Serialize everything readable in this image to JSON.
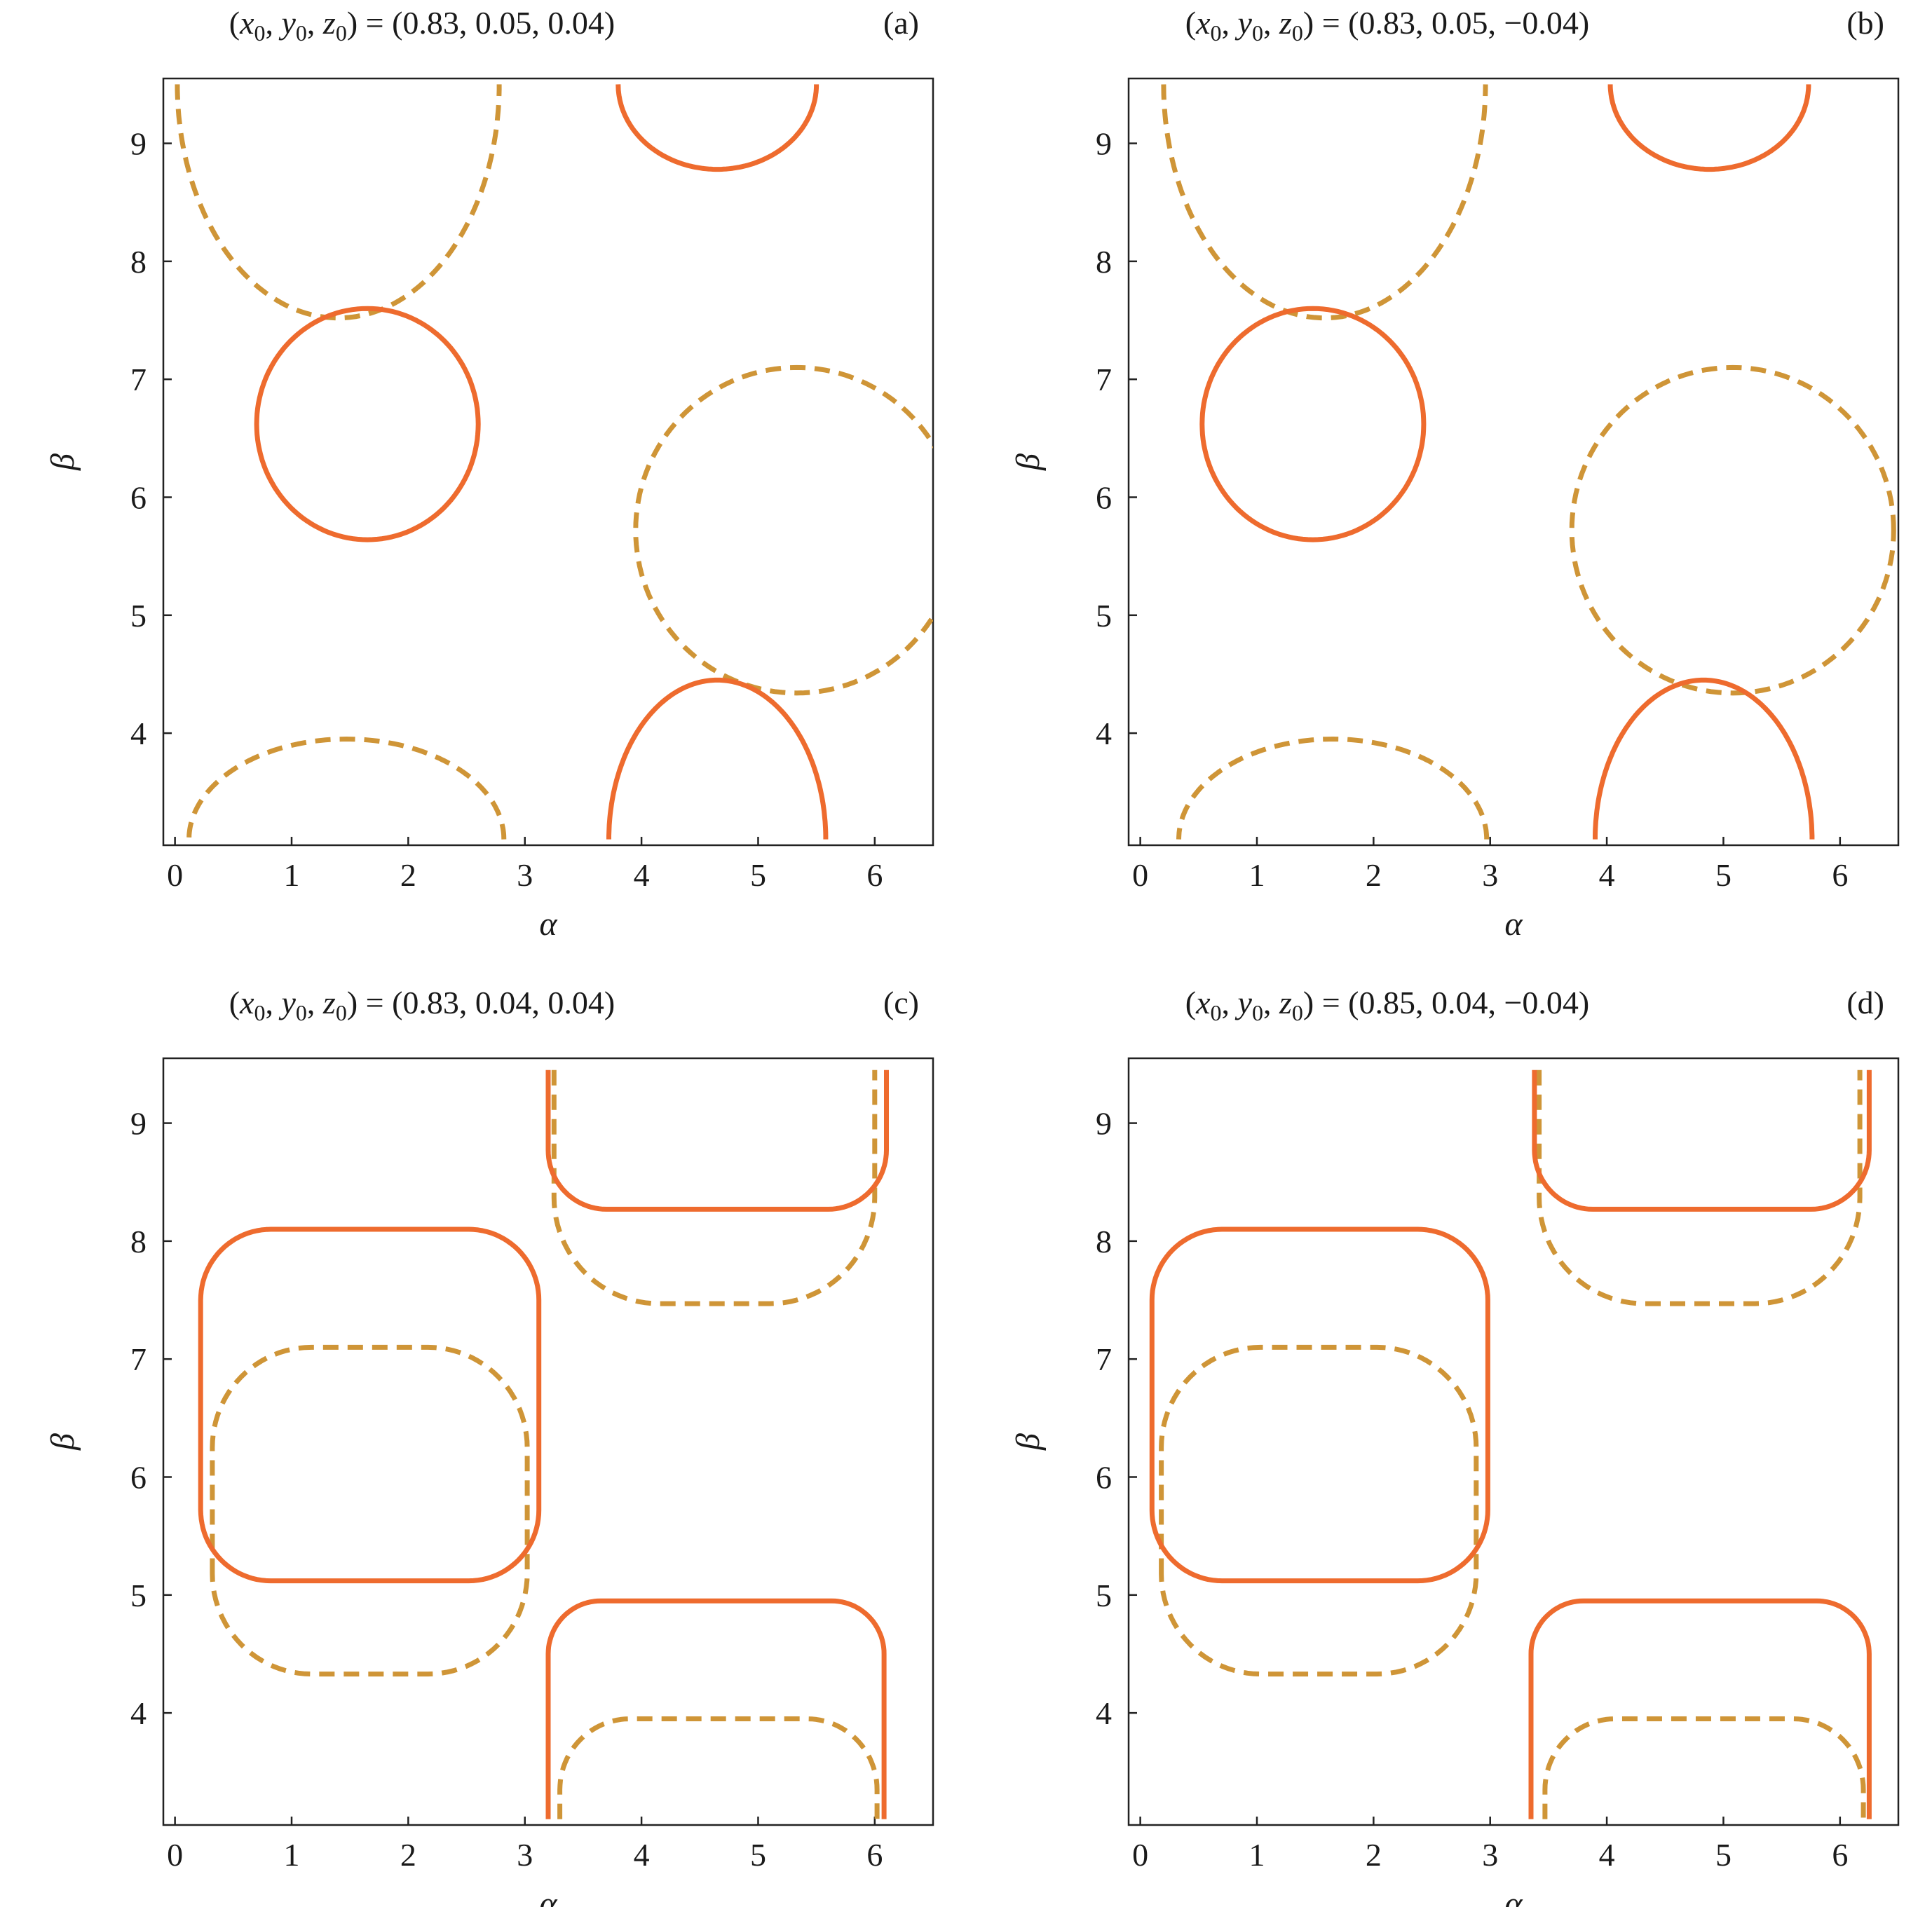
{
  "colors": {
    "solid": "#ee6b2e",
    "dashed": "#cf9537"
  },
  "chart_data": [
    {
      "type": "line",
      "title": "(x0, y0, z0) = (0.83, 0.05, 0.04)",
      "title_parts": {
        "vars": [
          "x",
          "y",
          "z"
        ],
        "sub": "0",
        "values": "(0.83, 0.05, 0.04)"
      },
      "tag": "(a)",
      "xlabel": "α",
      "ylabel": "β",
      "xlim": [
        -0.1,
        6.5
      ],
      "ylim": [
        3.05,
        9.55
      ],
      "xticks": [
        "0",
        "1",
        "2",
        "3",
        "4",
        "5",
        "6"
      ],
      "yticks": [
        "4",
        "5",
        "6",
        "7",
        "8",
        "9"
      ],
      "solid": [
        {
          "type": "ellipse",
          "cx": 1.65,
          "cy": 6.62,
          "rx": 0.95,
          "ry": 0.98
        },
        {
          "type": "ellipse",
          "cx": 4.65,
          "cy": 9.5,
          "rx": 0.85,
          "ry": 0.72,
          "half": "lower"
        },
        {
          "type": "ellipse",
          "cx": 4.65,
          "cy": 3.1,
          "rx": 0.93,
          "ry": 1.35,
          "half": "upper"
        }
      ],
      "dashed": [
        {
          "type": "ellipse",
          "cx": 1.4,
          "cy": 9.5,
          "rx": 1.38,
          "ry": 1.98,
          "half": "lower"
        },
        {
          "type": "ellipse",
          "cx": 5.33,
          "cy": 5.72,
          "rx": 1.38,
          "ry": 1.38
        },
        {
          "type": "ellipse",
          "cx": 1.47,
          "cy": 3.1,
          "rx": 1.35,
          "ry": 0.85,
          "half": "upper"
        }
      ]
    },
    {
      "type": "line",
      "title": "(x0, y0, z0) = (0.83, 0.05, −0.04)",
      "title_parts": {
        "vars": [
          "x",
          "y",
          "z"
        ],
        "sub": "0",
        "values": "(0.83, 0.05, −0.04)"
      },
      "tag": "(b)",
      "xlabel": "α",
      "ylabel": "β",
      "xlim": [
        -0.1,
        6.5
      ],
      "ylim": [
        3.05,
        9.55
      ],
      "xticks": [
        "0",
        "1",
        "2",
        "3",
        "4",
        "5",
        "6"
      ],
      "yticks": [
        "4",
        "5",
        "6",
        "7",
        "8",
        "9"
      ],
      "solid": [
        {
          "type": "ellipse",
          "cx": 1.48,
          "cy": 6.62,
          "rx": 0.95,
          "ry": 0.98
        },
        {
          "type": "ellipse",
          "cx": 4.88,
          "cy": 9.5,
          "rx": 0.85,
          "ry": 0.72,
          "half": "lower"
        },
        {
          "type": "ellipse",
          "cx": 4.83,
          "cy": 3.1,
          "rx": 0.93,
          "ry": 1.35,
          "half": "upper"
        }
      ],
      "dashed": [
        {
          "type": "ellipse",
          "cx": 1.58,
          "cy": 9.5,
          "rx": 1.38,
          "ry": 1.98,
          "half": "lower"
        },
        {
          "type": "ellipse",
          "cx": 5.08,
          "cy": 5.72,
          "rx": 1.38,
          "ry": 1.38
        },
        {
          "type": "ellipse",
          "cx": 1.65,
          "cy": 3.1,
          "rx": 1.32,
          "ry": 0.85,
          "half": "upper"
        }
      ]
    },
    {
      "type": "line",
      "title": "(x0, y0, z0) = (0.83, 0.04, 0.04)",
      "title_parts": {
        "vars": [
          "x",
          "y",
          "z"
        ],
        "sub": "0",
        "values": "(0.83, 0.04, 0.04)"
      },
      "tag": "(c)",
      "xlabel": "α",
      "ylabel": "β",
      "xlim": [
        -0.1,
        6.5
      ],
      "ylim": [
        3.05,
        9.55
      ],
      "xticks": [
        "0",
        "1",
        "2",
        "3",
        "4",
        "5",
        "6"
      ],
      "yticks": [
        "4",
        "5",
        "6",
        "7",
        "8",
        "9"
      ],
      "solid": [
        {
          "type": "rounded",
          "x0": 0.22,
          "x1": 3.12,
          "y0": 5.12,
          "y1": 8.1,
          "r": 0.6
        },
        {
          "type": "rounded-top",
          "x0": 3.2,
          "x1": 6.08,
          "ytop": 4.95,
          "ybot": 3.1,
          "r": 0.45
        },
        {
          "type": "rounded-bottom",
          "x0": 3.2,
          "x1": 6.1,
          "ytop": 9.45,
          "ybot": 8.27,
          "r": 0.5
        }
      ],
      "dashed": [
        {
          "type": "rounded",
          "x0": 0.32,
          "x1": 3.02,
          "y0": 4.33,
          "y1": 7.1,
          "r": 0.85
        },
        {
          "type": "rounded-top",
          "x0": 3.3,
          "x1": 6.02,
          "ytop": 3.95,
          "ybot": 3.1,
          "r": 0.6
        },
        {
          "type": "rounded-bottom",
          "x0": 3.25,
          "x1": 6.0,
          "ytop": 9.45,
          "ybot": 7.47,
          "r": 0.9
        }
      ]
    },
    {
      "type": "line",
      "title": "(x0, y0, z0) = (0.85, 0.04, −0.04)",
      "title_parts": {
        "vars": [
          "x",
          "y",
          "z"
        ],
        "sub": "0",
        "values": "(0.85, 0.04, −0.04)"
      },
      "tag": "(d)",
      "xlabel": "α",
      "ylabel": "β",
      "xlim": [
        -0.1,
        6.5
      ],
      "ylim": [
        3.05,
        9.55
      ],
      "xticks": [
        "0",
        "1",
        "2",
        "3",
        "4",
        "5",
        "6"
      ],
      "yticks": [
        "4",
        "5",
        "6",
        "7",
        "8",
        "9"
      ],
      "solid": [
        {
          "type": "rounded",
          "x0": 0.1,
          "x1": 2.98,
          "y0": 5.12,
          "y1": 8.1,
          "r": 0.6
        },
        {
          "type": "rounded-top",
          "x0": 3.35,
          "x1": 6.25,
          "ytop": 4.95,
          "ybot": 3.1,
          "r": 0.45
        },
        {
          "type": "rounded-bottom",
          "x0": 3.38,
          "x1": 6.25,
          "ytop": 9.45,
          "ybot": 8.27,
          "r": 0.5
        }
      ],
      "dashed": [
        {
          "type": "rounded",
          "x0": 0.18,
          "x1": 2.88,
          "y0": 4.33,
          "y1": 7.1,
          "r": 0.85
        },
        {
          "type": "rounded-top",
          "x0": 3.47,
          "x1": 6.2,
          "ytop": 3.95,
          "ybot": 3.1,
          "r": 0.6
        },
        {
          "type": "rounded-bottom",
          "x0": 3.42,
          "x1": 6.17,
          "ytop": 9.45,
          "ybot": 7.47,
          "r": 0.9
        }
      ]
    }
  ]
}
